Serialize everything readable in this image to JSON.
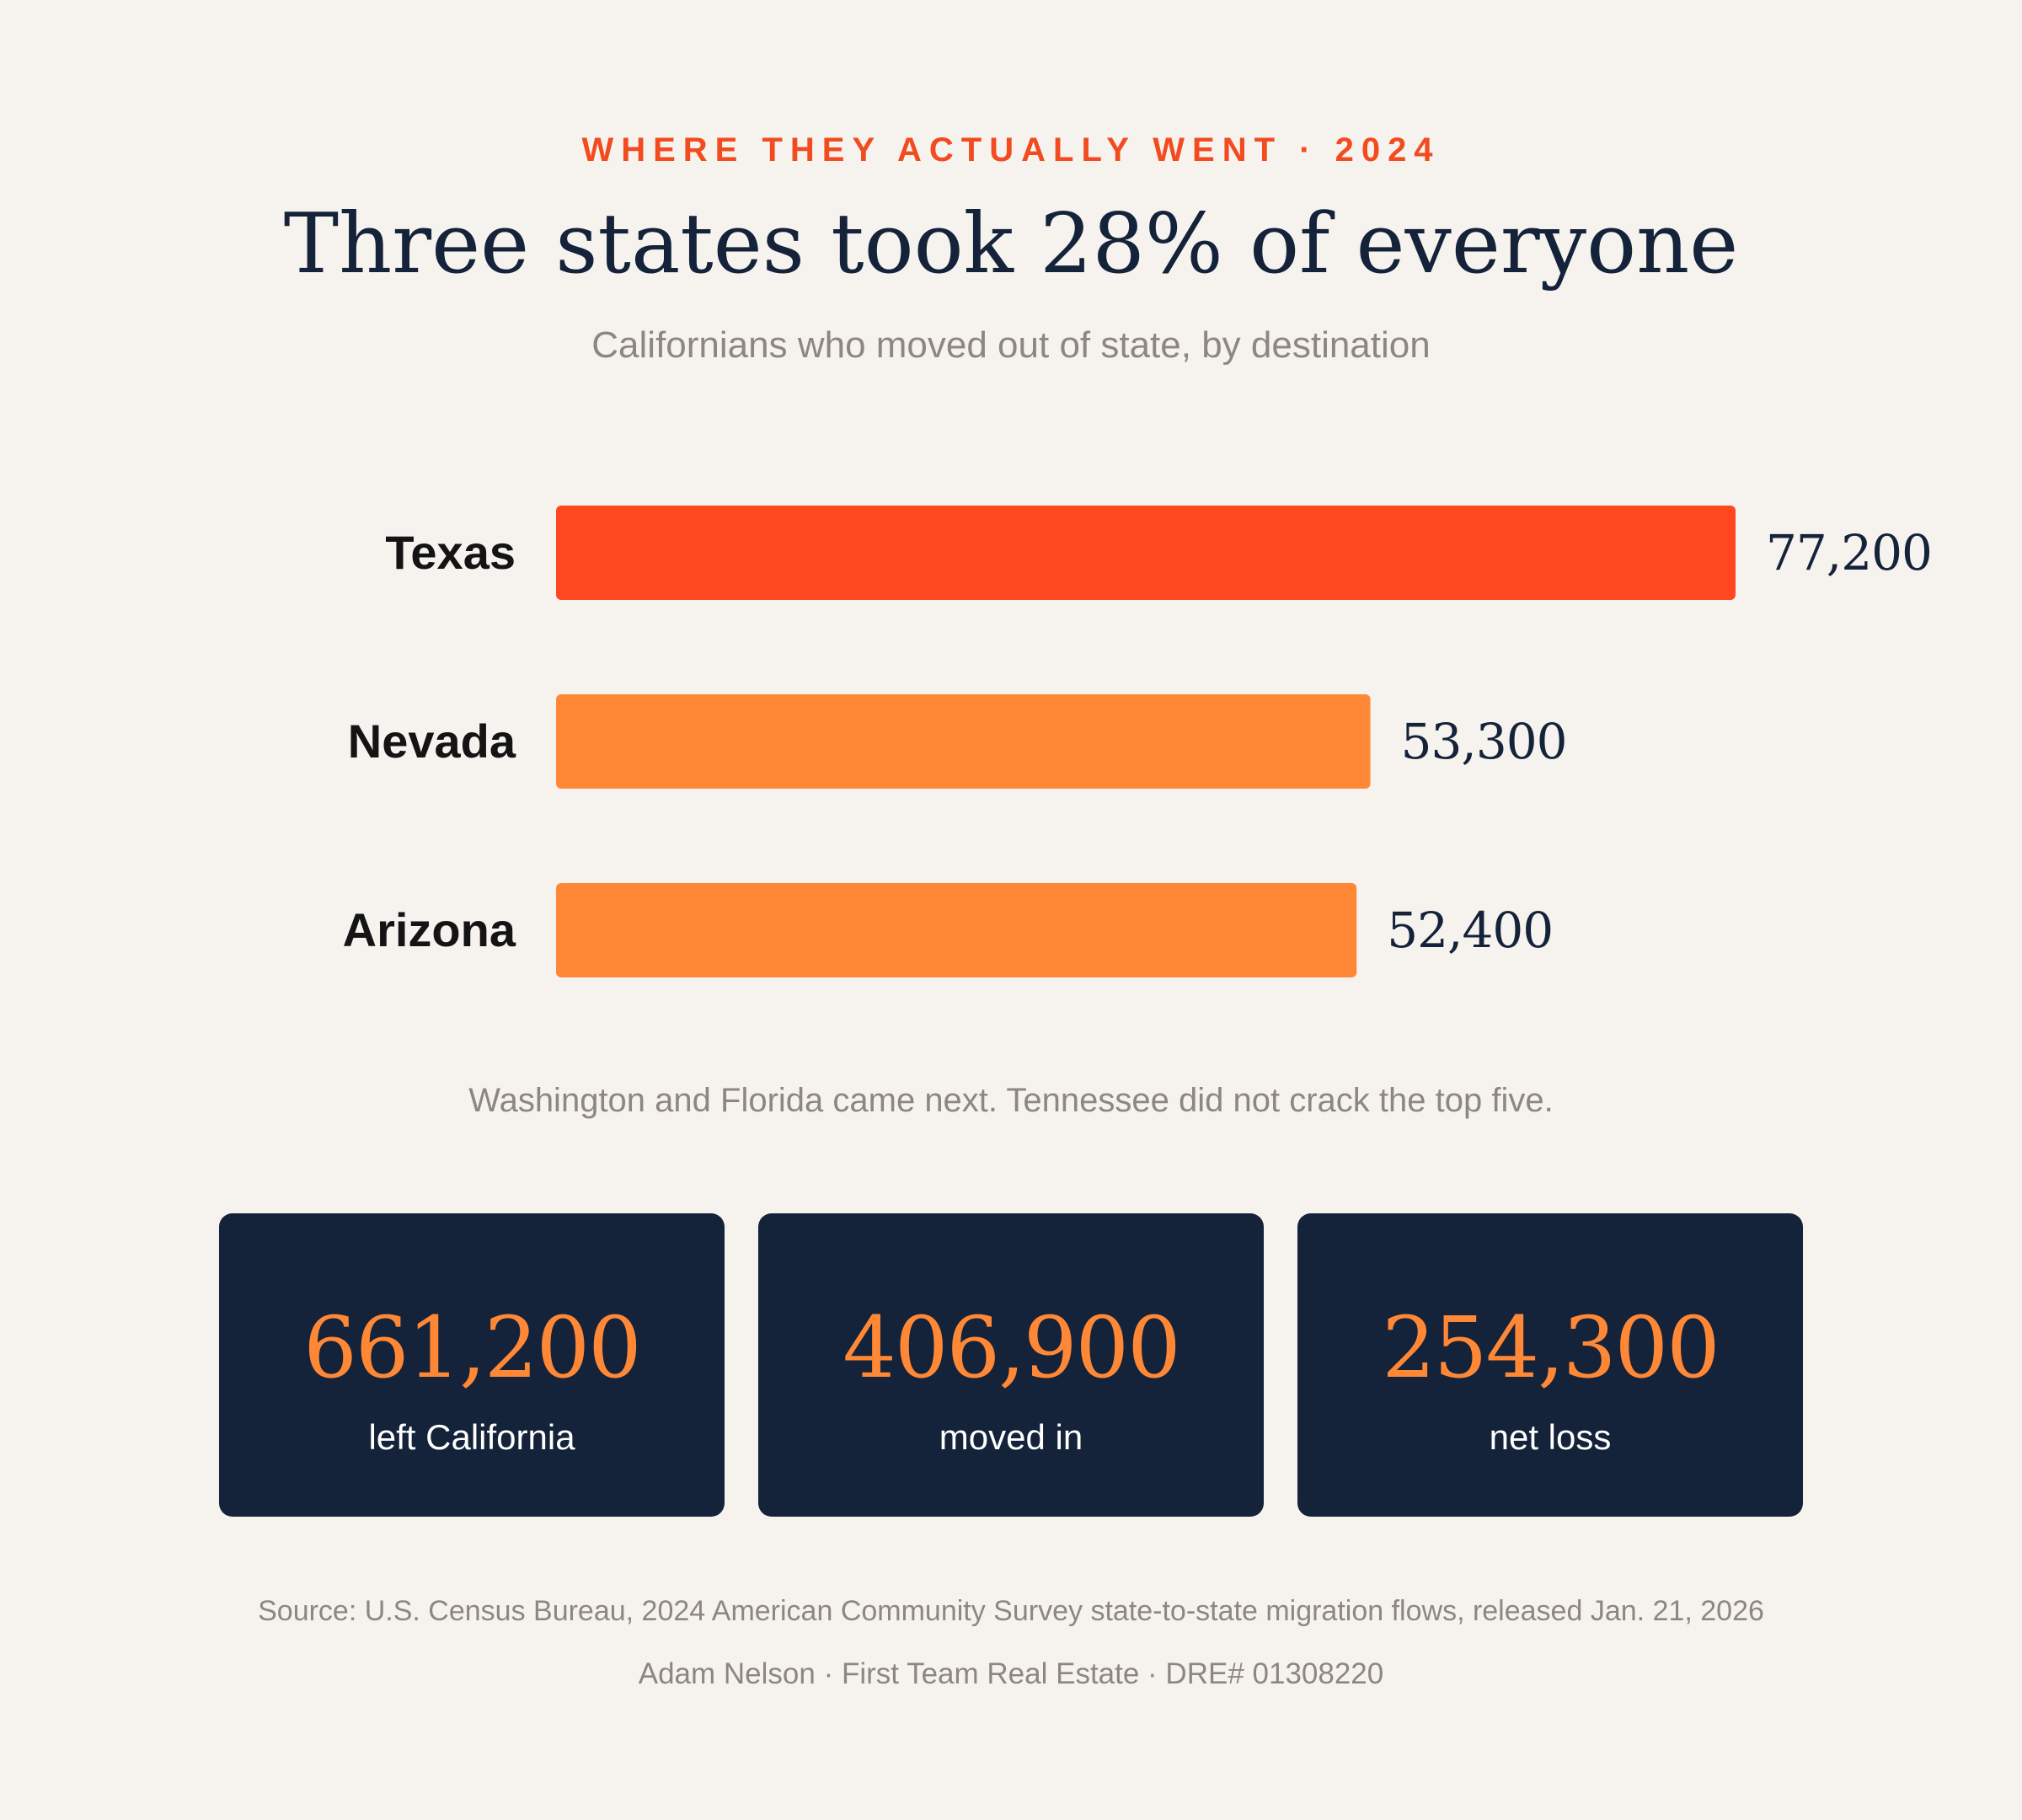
{
  "header": {
    "eyebrow": "WHERE THEY ACTUALLY WENT · 2024",
    "title": "Three states took 28% of everyone",
    "subtitle": "Californians who moved out of state, by destination"
  },
  "chart_data": {
    "type": "bar",
    "orientation": "horizontal",
    "categories": [
      "Texas",
      "Nevada",
      "Arizona"
    ],
    "values": [
      77200,
      53300,
      52400
    ],
    "value_labels": [
      "77,200",
      "53,300",
      "52,400"
    ],
    "highlight_index": 0,
    "grid": false,
    "legend": "none",
    "xlim": [
      0,
      77200
    ]
  },
  "footnote": "Washington and Florida came next. Tennessee did not crack the top five.",
  "stats": [
    {
      "value": "661,200",
      "label": "left California"
    },
    {
      "value": "406,900",
      "label": "moved in"
    },
    {
      "value": "254,300",
      "label": "net loss"
    }
  ],
  "source": "Source: U.S. Census Bureau, 2024 American Community Survey state-to-state migration flows, released Jan. 21, 2026",
  "credit": "Adam Nelson · First Team Real Estate · DRE# 01308220",
  "colors": {
    "accent": "#ff4820",
    "bar": "#ff8836",
    "navy": "#14223a",
    "muted": "#8c8780",
    "background": "#f6f3ef",
    "eyebrow": "#f24b1f",
    "label": "#141414"
  }
}
